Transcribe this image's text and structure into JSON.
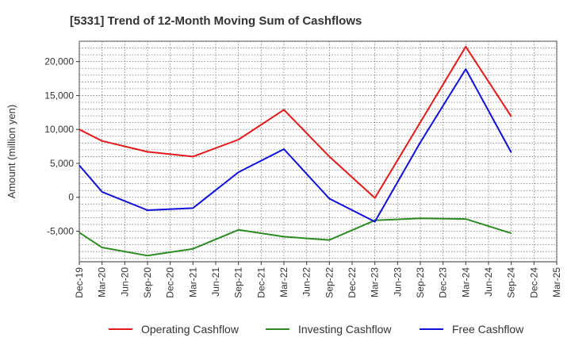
{
  "chart_data": {
    "type": "line",
    "title": "[5331]  Trend of 12-Month Moving Sum of Cashflows",
    "ylabel": "Amount (million yen)",
    "xlabel": "",
    "categories": [
      "Dec-19",
      "Mar-20",
      "Jun-20",
      "Sep-20",
      "Dec-20",
      "Mar-21",
      "Jun-21",
      "Sep-21",
      "Dec-21",
      "Mar-22",
      "Jun-22",
      "Sep-22",
      "Dec-22",
      "Mar-23",
      "Jun-23",
      "Sep-23",
      "Dec-23",
      "Mar-24",
      "Jun-24",
      "Sep-24",
      "Dec-24",
      "Mar-25"
    ],
    "ylim": [
      -9500,
      23000
    ],
    "yticks": [
      -5000,
      0,
      5000,
      10000,
      15000,
      20000
    ],
    "ytick_labels": [
      "-5,000",
      "0",
      "5,000",
      "10,000",
      "15,000",
      "20,000"
    ],
    "grid": true,
    "legend_position": "bottom",
    "series": [
      {
        "name": "Operating Cashflow",
        "color": "#e31a1c",
        "values": [
          10000,
          8300,
          null,
          6700,
          null,
          6000,
          null,
          8500,
          null,
          12900,
          null,
          6000,
          null,
          -100,
          null,
          null,
          null,
          22200,
          null,
          11900,
          null,
          null
        ]
      },
      {
        "name": "Investing Cashflow",
        "color": "#2e8b23",
        "values": [
          -5200,
          -7400,
          null,
          -8600,
          null,
          -7600,
          null,
          -4800,
          null,
          -5800,
          null,
          -6300,
          null,
          -3400,
          null,
          -3100,
          null,
          -3200,
          null,
          -5300,
          null,
          null
        ]
      },
      {
        "name": "Free Cashflow",
        "color": "#1010d8",
        "values": [
          4700,
          800,
          null,
          -1900,
          null,
          -1600,
          null,
          3700,
          null,
          7100,
          null,
          -200,
          null,
          -3600,
          null,
          8100,
          null,
          18900,
          null,
          6600,
          null,
          null
        ]
      }
    ]
  }
}
